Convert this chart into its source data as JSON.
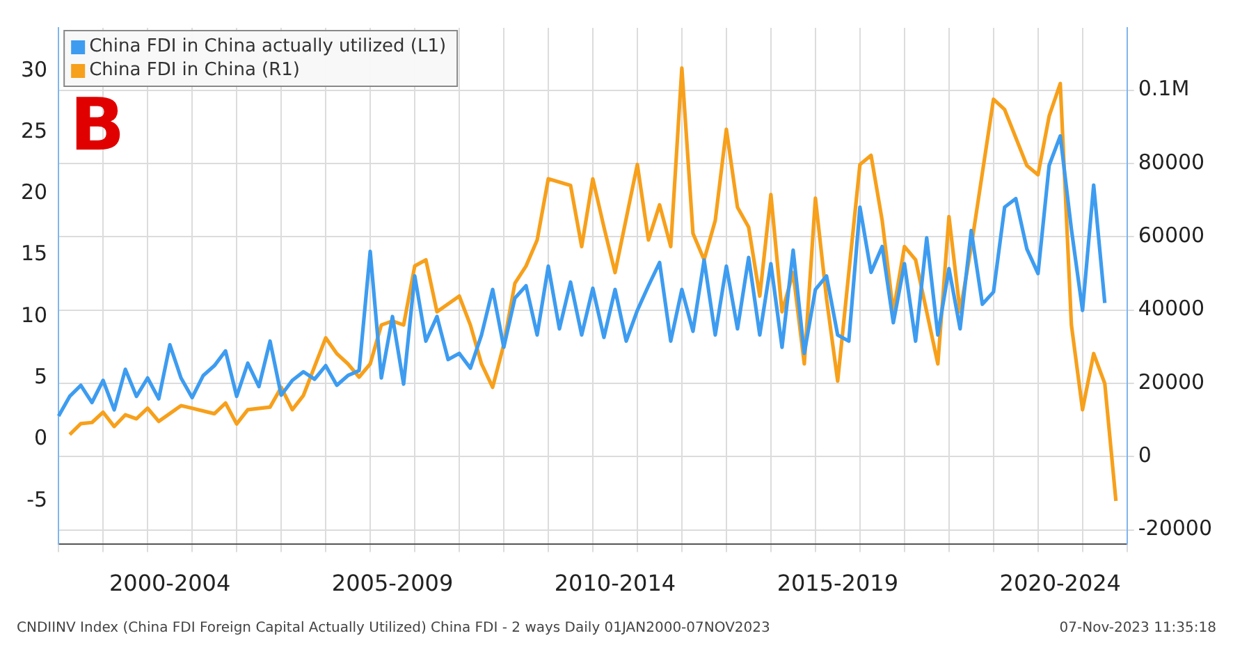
{
  "chart_data": {
    "type": "line",
    "legend": "top left",
    "grid": true,
    "marker": "none",
    "line_style": "solid",
    "annotations": [
      "B",
      "CNDIINV Index (China FDI Foreign Capital Actually Utilized) China FDI - 2 ways  Daily 01JAN2000-07NOV2023",
      "07-Nov-2023 11:35:18"
    ],
    "categories": [
      null,
      null,
      null,
      null,
      null,
      null,
      null,
      null,
      null,
      null,
      "2000-2004",
      null,
      null,
      null,
      null,
      null,
      null,
      null,
      null,
      null,
      null,
      null,
      null,
      null,
      null,
      null,
      null,
      null,
      null,
      null,
      "2005-2009",
      null,
      null,
      null,
      null,
      null,
      null,
      null,
      null,
      null,
      null,
      null,
      null,
      null,
      null,
      null,
      null,
      null,
      null,
      null,
      "2010-2014",
      null,
      null,
      null,
      null,
      null,
      null,
      null,
      null,
      null,
      null,
      null,
      null,
      null,
      null,
      null,
      null,
      null,
      null,
      null,
      "2015-2019",
      null,
      null,
      null,
      null,
      null,
      null,
      null,
      null,
      null,
      null,
      null,
      null,
      null,
      null,
      null,
      null,
      null,
      null,
      null,
      "2020-2024",
      null,
      null,
      null,
      null,
      null,
      null
    ],
    "ylim": [
      -8.5,
      33.5
    ],
    "yticks": [
      -5,
      0,
      5,
      10,
      15,
      20,
      25,
      30
    ],
    "y2lim": [
      -23800,
      117000
    ],
    "y2ticks": [
      -20000,
      0,
      20000,
      40000,
      60000,
      80000,
      {
        "value": 100000,
        "label": "0.1M"
      }
    ],
    "series": [
      {
        "name": "China FDI in China actually utilized (L1)",
        "color": "#3d9cf0",
        "axis": "y",
        "values": [
          1.9,
          3.5,
          4.4,
          3.0,
          4.8,
          2.4,
          5.7,
          3.5,
          5.0,
          3.3,
          7.7,
          5.0,
          3.4,
          5.2,
          6.0,
          7.2,
          3.5,
          6.2,
          4.3,
          8.0,
          3.6,
          4.8,
          5.5,
          4.9,
          6.0,
          4.4,
          5.2,
          5.6,
          15.3,
          5.0,
          10.0,
          4.5,
          13.3,
          8.0,
          10.0,
          6.5,
          7.0,
          5.8,
          8.5,
          12.2,
          7.5,
          11.5,
          12.5,
          8.5,
          14.1,
          9.0,
          12.8,
          8.5,
          12.3,
          8.3,
          12.2,
          8.0,
          10.5,
          12.5,
          14.4,
          8.0,
          12.2,
          8.8,
          14.6,
          8.5,
          14.1,
          9.0,
          14.8,
          8.5,
          14.3,
          7.5,
          15.4,
          7.0,
          12.2,
          13.3,
          8.5,
          8.0,
          18.9,
          13.6,
          15.7,
          9.5,
          14.3,
          8.0,
          16.4,
          8.5,
          13.9,
          9.0,
          17.0,
          11.0,
          12.0,
          18.9,
          19.6,
          15.5,
          13.5,
          22.3,
          24.7,
          17.1,
          10.5,
          20.7,
          11.1,
          null,
          null
        ]
      },
      {
        "name": "China FDI in China (R1)",
        "color": "#f7a01b",
        "axis": "y2",
        "values": [
          null,
          6000,
          9000,
          9300,
          12100,
          8200,
          11400,
          10300,
          13200,
          9600,
          null,
          13900,
          13200,
          null,
          11700,
          14600,
          8900,
          12800,
          null,
          13500,
          18900,
          12800,
          16700,
          null,
          32400,
          28100,
          25300,
          21700,
          25300,
          35900,
          37000,
          35900,
          52000,
          53700,
          39500,
          null,
          43800,
          35900,
          25300,
          18900,
          30600,
          47300,
          52000,
          59100,
          75800,
          null,
          74000,
          57300,
          75800,
          62600,
          50200,
          null,
          79700,
          59100,
          68700,
          57300,
          106000,
          60900,
          53700,
          64400,
          89300,
          68000,
          62600,
          43800,
          71500,
          39500,
          50200,
          25300,
          70500,
          43100,
          20600,
          50200,
          79700,
          82200,
          64400,
          39500,
          57300,
          53700,
          null,
          25300,
          65500,
          39500,
          57300,
          null,
          97500,
          94700,
          null,
          79400,
          76900,
          92900,
          101800,
          35900,
          12800,
          28100,
          19900,
          -12100,
          null
        ]
      }
    ]
  }
}
